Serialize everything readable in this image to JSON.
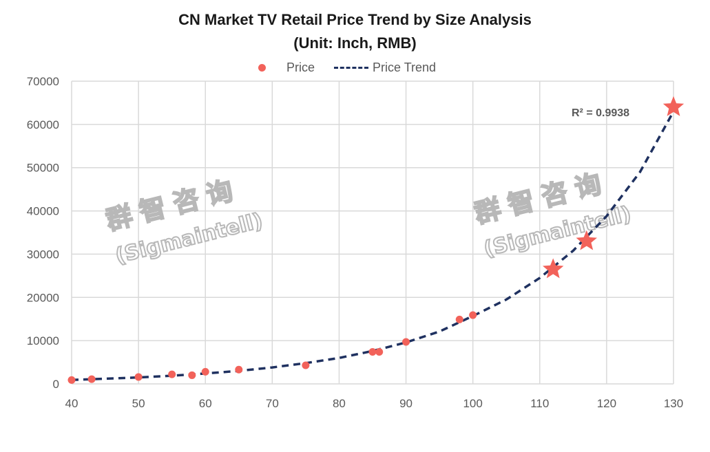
{
  "chart_data": {
    "type": "scatter",
    "title": "CN Market TV Retail Price Trend by Size Analysis",
    "subtitle": "(Unit: Inch, RMB)",
    "xlim": [
      40,
      130
    ],
    "ylim": [
      0,
      70000
    ],
    "x_ticks": [
      40,
      50,
      60,
      70,
      80,
      90,
      100,
      110,
      120,
      130
    ],
    "y_ticks": [
      0,
      10000,
      20000,
      30000,
      40000,
      50000,
      60000,
      70000
    ],
    "grid": true,
    "legend": {
      "position": "top",
      "entries": [
        "Price",
        "Price Trend"
      ]
    },
    "annotation": "R² = 0.9938",
    "series": [
      {
        "name": "Price",
        "type": "scatter",
        "color": "#f2625a",
        "points": [
          {
            "x": 40,
            "y": 900
          },
          {
            "x": 43,
            "y": 1100
          },
          {
            "x": 50,
            "y": 1600
          },
          {
            "x": 55,
            "y": 2200
          },
          {
            "x": 58,
            "y": 2000
          },
          {
            "x": 60,
            "y": 2800
          },
          {
            "x": 65,
            "y": 3300
          },
          {
            "x": 75,
            "y": 4300
          },
          {
            "x": 85,
            "y": 7400
          },
          {
            "x": 86,
            "y": 7400
          },
          {
            "x": 90,
            "y": 9700
          },
          {
            "x": 98,
            "y": 14900
          },
          {
            "x": 100,
            "y": 15900
          }
        ],
        "highlight_points": [
          {
            "x": 112,
            "y": 26500
          },
          {
            "x": 117,
            "y": 33000
          },
          {
            "x": 130,
            "y": 64000
          }
        ]
      },
      {
        "name": "Price Trend",
        "type": "line",
        "style": "dashed",
        "color": "#1f3160",
        "points": [
          {
            "x": 40,
            "y": 900
          },
          {
            "x": 45,
            "y": 1200
          },
          {
            "x": 50,
            "y": 1500
          },
          {
            "x": 55,
            "y": 1900
          },
          {
            "x": 60,
            "y": 2400
          },
          {
            "x": 65,
            "y": 3000
          },
          {
            "x": 70,
            "y": 3800
          },
          {
            "x": 75,
            "y": 4800
          },
          {
            "x": 80,
            "y": 6000
          },
          {
            "x": 85,
            "y": 7600
          },
          {
            "x": 90,
            "y": 9600
          },
          {
            "x": 95,
            "y": 12100
          },
          {
            "x": 100,
            "y": 15700
          },
          {
            "x": 105,
            "y": 19500
          },
          {
            "x": 110,
            "y": 24500
          },
          {
            "x": 115,
            "y": 30800
          },
          {
            "x": 120,
            "y": 38800
          },
          {
            "x": 125,
            "y": 49000
          },
          {
            "x": 130,
            "y": 63000
          }
        ]
      }
    ]
  },
  "watermark": {
    "cn": "群智咨询",
    "en": "(Sigmaintell)"
  },
  "colors": {
    "point": "#f2625a",
    "trend": "#1f3160",
    "grid": "#d9d9d9",
    "axis_text": "#595959"
  }
}
